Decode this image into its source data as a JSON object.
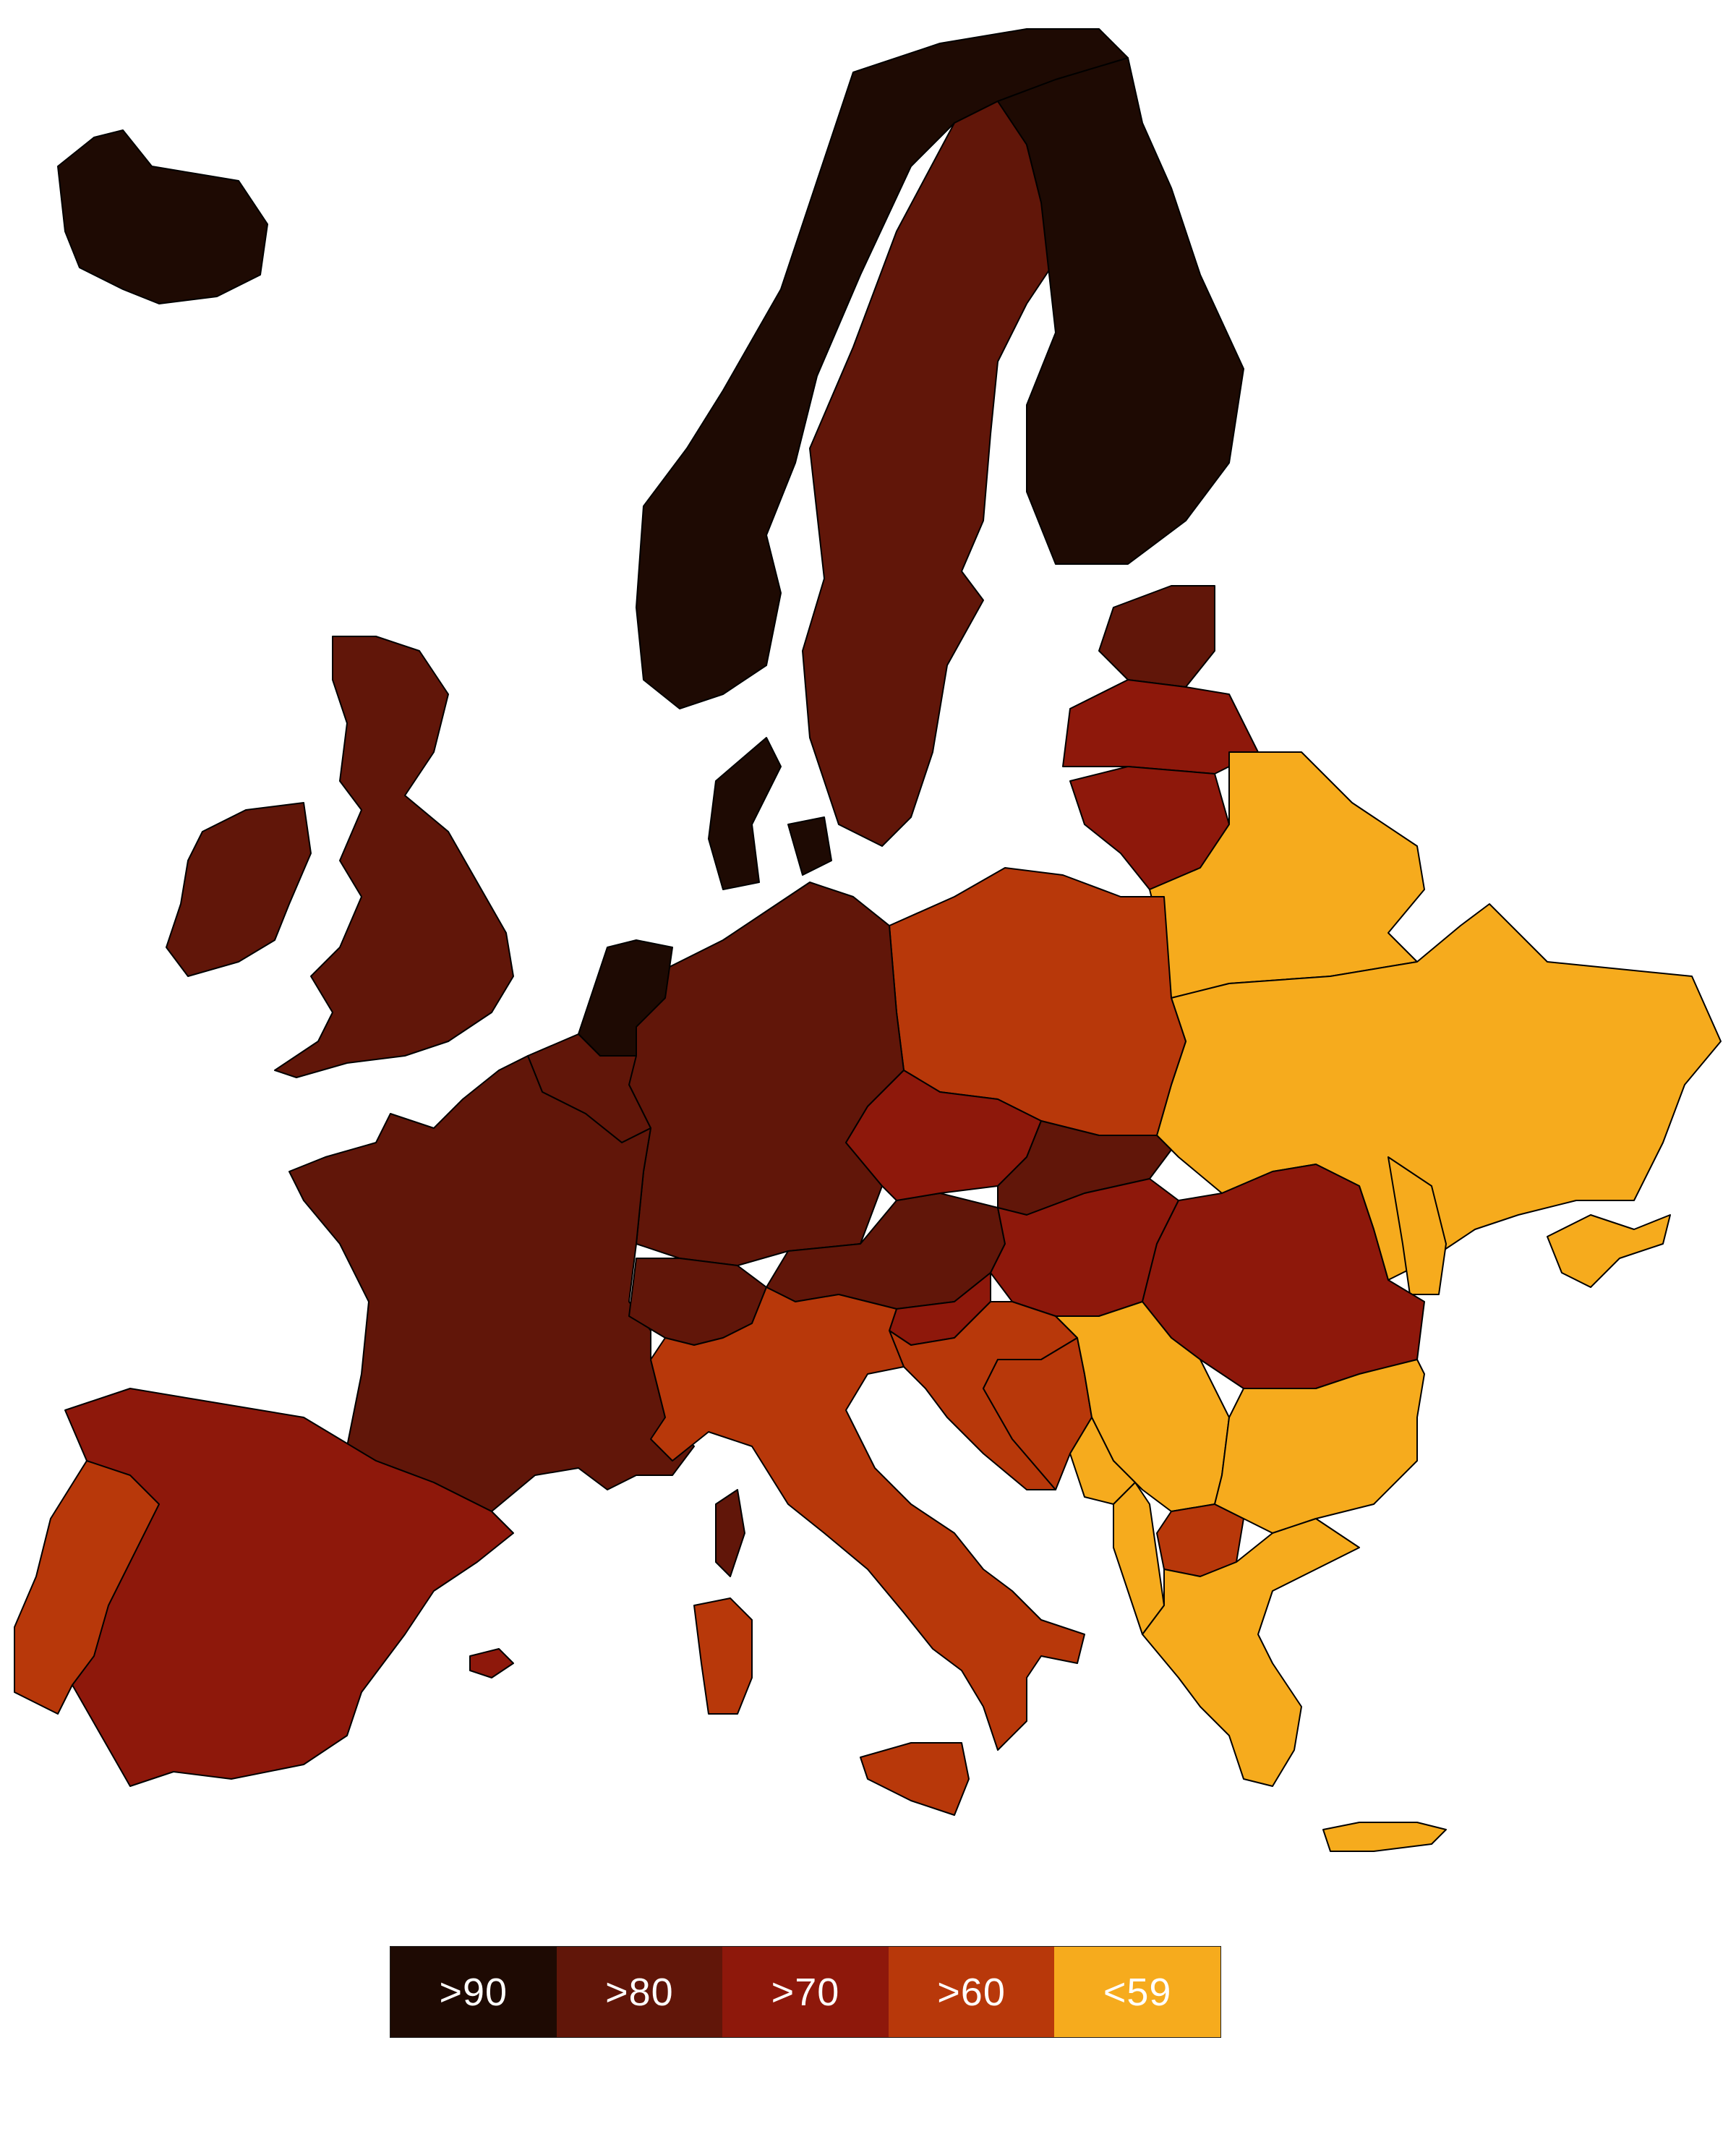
{
  "map": {
    "colors": {
      "gt90": "#1e0a03",
      "gt80": "#611609",
      "gt70": "#8e180b",
      "gt60": "#b8380a",
      "lt59": "#f6ab1d"
    },
    "regions": [
      {
        "name": "iceland-region",
        "class": "gt90"
      },
      {
        "name": "norway-region",
        "class": "gt90"
      },
      {
        "name": "finland-region",
        "class": "gt90"
      },
      {
        "name": "denmark-region",
        "class": "gt90"
      },
      {
        "name": "netherlands-region",
        "class": "gt90"
      },
      {
        "name": "sweden-region",
        "class": "gt80"
      },
      {
        "name": "ireland-region",
        "class": "gt80"
      },
      {
        "name": "uk-region",
        "class": "gt80"
      },
      {
        "name": "france-region",
        "class": "gt80"
      },
      {
        "name": "belgium-region",
        "class": "gt80"
      },
      {
        "name": "germany-region",
        "class": "gt80"
      },
      {
        "name": "switzerland-region",
        "class": "gt80"
      },
      {
        "name": "austria-region",
        "class": "gt80"
      },
      {
        "name": "slovakia-region",
        "class": "gt80"
      },
      {
        "name": "estonia-region",
        "class": "gt80"
      },
      {
        "name": "corsica-region",
        "class": "gt80"
      },
      {
        "name": "latvia-region",
        "class": "gt70"
      },
      {
        "name": "lithuania-region",
        "class": "gt70"
      },
      {
        "name": "czechia-region",
        "class": "gt70"
      },
      {
        "name": "hungary-region",
        "class": "gt70"
      },
      {
        "name": "romania-region",
        "class": "gt70"
      },
      {
        "name": "slovenia-region",
        "class": "gt70"
      },
      {
        "name": "spain-region",
        "class": "gt70"
      },
      {
        "name": "portugal-region",
        "class": "gt60"
      },
      {
        "name": "poland-region",
        "class": "gt60"
      },
      {
        "name": "italy-region",
        "class": "gt60"
      },
      {
        "name": "sardinia-region",
        "class": "gt60"
      },
      {
        "name": "sicily-region",
        "class": "gt60"
      },
      {
        "name": "croatia-region",
        "class": "gt60"
      },
      {
        "name": "bosnia-region",
        "class": "gt60"
      },
      {
        "name": "north-macedonia-region",
        "class": "gt60"
      },
      {
        "name": "mallorca-region",
        "class": "gt70"
      },
      {
        "name": "belarus-region",
        "class": "lt59"
      },
      {
        "name": "ukraine-region",
        "class": "lt59"
      },
      {
        "name": "moldova-region",
        "class": "lt59"
      },
      {
        "name": "serbia-region",
        "class": "lt59"
      },
      {
        "name": "bulgaria-region",
        "class": "lt59"
      },
      {
        "name": "albania-region",
        "class": "lt59"
      },
      {
        "name": "montenegro-region",
        "class": "lt59"
      },
      {
        "name": "greece-region",
        "class": "lt59"
      },
      {
        "name": "crete-region",
        "class": "lt59"
      }
    ]
  },
  "legend": {
    "items": [
      {
        "label": ">90",
        "class": "gt90"
      },
      {
        "label": ">80",
        "class": "gt80"
      },
      {
        "label": ">70",
        "class": "gt70"
      },
      {
        "label": ">60",
        "class": "gt60"
      },
      {
        "label": "<59",
        "class": "lt59"
      }
    ]
  }
}
